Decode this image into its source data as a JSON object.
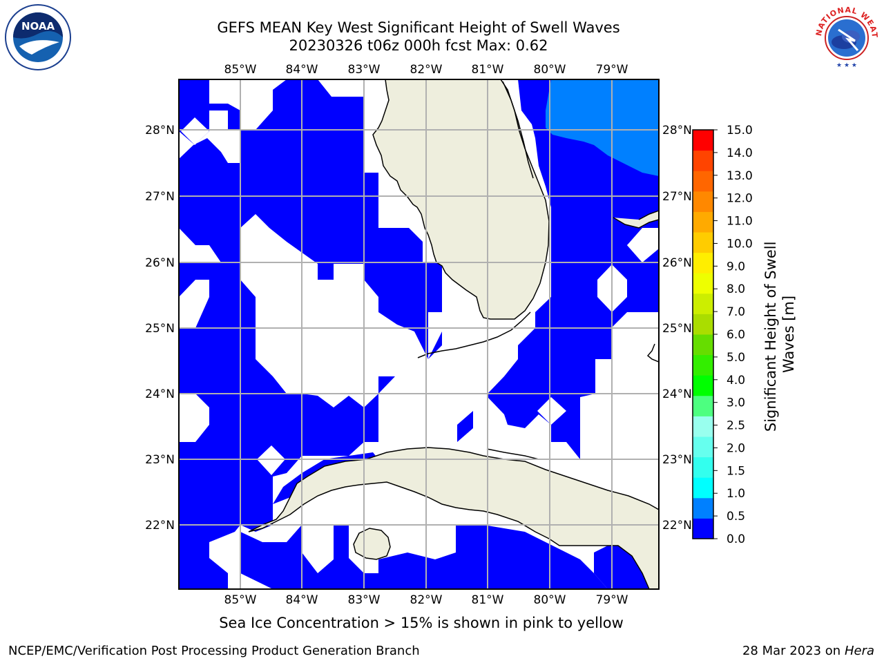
{
  "header": {
    "title_line1": "GEFS MEAN Key West Significant Height of Swell Waves",
    "title_line2": "20230326 t06z 000h fcst   Max: 0.62"
  },
  "logos": {
    "left": "NOAA",
    "right": "NATIONAL WEATHER SERVICE"
  },
  "map": {
    "lon_labels": [
      "85°W",
      "84°W",
      "83°W",
      "82°W",
      "81°W",
      "80°W",
      "79°W"
    ],
    "lat_labels": [
      "28°N",
      "27°N",
      "26°N",
      "25°N",
      "24°N",
      "23°N",
      "22°N"
    ],
    "colors": {
      "land": "#eeeedd",
      "swell_0_0p5": "#0000ff",
      "swell_0p5_1": "#0080ff",
      "grid": "#b0b0b0"
    }
  },
  "colorbar": {
    "label": "Significant Height of Swell Waves [m]",
    "ticks": [
      "0.0",
      "0.5",
      "1.0",
      "1.5",
      "2.0",
      "2.5",
      "3.0",
      "4.0",
      "5.0",
      "6.0",
      "7.0",
      "8.0",
      "9.0",
      "10.0",
      "11.0",
      "12.0",
      "13.0",
      "14.0",
      "15.0"
    ],
    "colors": [
      "#0000ff",
      "#0080ff",
      "#00ffff",
      "#33ffee",
      "#66ffee",
      "#99ffee",
      "#4dff80",
      "#00ff00",
      "#33ee00",
      "#66dd00",
      "#aadd00",
      "#ccee00",
      "#eeff00",
      "#ffee00",
      "#ffcc00",
      "#ffaa00",
      "#ff8800",
      "#ff6600",
      "#ff4400",
      "#ff0000"
    ]
  },
  "footer": {
    "note": "Sea Ice Concentration > 15% is shown in pink to yellow",
    "credit": "NCEP/EMC/Verification Post Processing Product Generation Branch",
    "date": "28 Mar 2023 on",
    "host": "Hera"
  }
}
